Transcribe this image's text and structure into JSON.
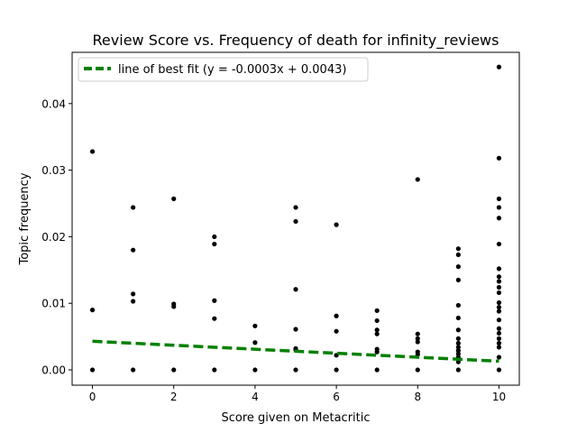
{
  "chart_data": {
    "type": "scatter",
    "title": "Review Score vs. Frequency of death for infinity_reviews",
    "xlabel": "Score given on Metacritic",
    "ylabel": "Topic frequency",
    "xlim": [
      -0.5,
      10.5
    ],
    "ylim": [
      -0.0023,
      0.0477
    ],
    "xticks": [
      0,
      2,
      4,
      6,
      8,
      10
    ],
    "yticks": [
      0.0,
      0.01,
      0.02,
      0.03,
      0.04
    ],
    "ytick_labels": [
      "0.00",
      "0.01",
      "0.02",
      "0.03",
      "0.04"
    ],
    "grid": false,
    "legend_position": "top-left",
    "points_color": "#000000",
    "fit_line": {
      "label": "line of best fit (y = -0.0003x + 0.0043)",
      "slope": -0.0003,
      "intercept": 0.0043,
      "color": "#008000",
      "style": "dashed"
    },
    "points": [
      [
        0,
        0.0328
      ],
      [
        0,
        0.009
      ],
      [
        0,
        0.0
      ],
      [
        1,
        0.0244
      ],
      [
        1,
        0.018
      ],
      [
        1,
        0.0114
      ],
      [
        1,
        0.0103
      ],
      [
        1,
        0.0
      ],
      [
        2,
        0.0257
      ],
      [
        2,
        0.0099
      ],
      [
        2,
        0.0095
      ],
      [
        2,
        0.0
      ],
      [
        3,
        0.02
      ],
      [
        3,
        0.0189
      ],
      [
        3,
        0.0104
      ],
      [
        3,
        0.0077
      ],
      [
        3,
        0.0
      ],
      [
        4,
        0.0066
      ],
      [
        4,
        0.0041
      ],
      [
        4,
        0.0
      ],
      [
        5,
        0.0244
      ],
      [
        5,
        0.0223
      ],
      [
        5,
        0.0121
      ],
      [
        5,
        0.0061
      ],
      [
        5,
        0.0032
      ],
      [
        5,
        0.003
      ],
      [
        5,
        0.0
      ],
      [
        6,
        0.0218
      ],
      [
        6,
        0.0081
      ],
      [
        6,
        0.0058
      ],
      [
        6,
        0.0022
      ],
      [
        6,
        0.0
      ],
      [
        7,
        0.0089
      ],
      [
        7,
        0.0074
      ],
      [
        7,
        0.006
      ],
      [
        7,
        0.0054
      ],
      [
        7,
        0.0031
      ],
      [
        7,
        0.0027
      ],
      [
        7,
        0.0
      ],
      [
        8,
        0.0286
      ],
      [
        8,
        0.0054
      ],
      [
        8,
        0.0047
      ],
      [
        8,
        0.0042
      ],
      [
        8,
        0.0027
      ],
      [
        8,
        0.0023
      ],
      [
        8,
        0.0
      ],
      [
        9,
        0.0182
      ],
      [
        9,
        0.0173
      ],
      [
        9,
        0.0155
      ],
      [
        9,
        0.0135
      ],
      [
        9,
        0.0097
      ],
      [
        9,
        0.0078
      ],
      [
        9,
        0.006
      ],
      [
        9,
        0.0047
      ],
      [
        9,
        0.004
      ],
      [
        9,
        0.0034
      ],
      [
        9,
        0.0029
      ],
      [
        9,
        0.0024
      ],
      [
        9,
        0.0019
      ],
      [
        9,
        0.0012
      ],
      [
        9,
        0.0
      ],
      [
        10,
        0.0455
      ],
      [
        10,
        0.0318
      ],
      [
        10,
        0.0257
      ],
      [
        10,
        0.0244
      ],
      [
        10,
        0.0228
      ],
      [
        10,
        0.0189
      ],
      [
        10,
        0.0152
      ],
      [
        10,
        0.014
      ],
      [
        10,
        0.0133
      ],
      [
        10,
        0.0124
      ],
      [
        10,
        0.0116
      ],
      [
        10,
        0.0101
      ],
      [
        10,
        0.0094
      ],
      [
        10,
        0.0088
      ],
      [
        10,
        0.0075
      ],
      [
        10,
        0.0062
      ],
      [
        10,
        0.0055
      ],
      [
        10,
        0.0047
      ],
      [
        10,
        0.004
      ],
      [
        10,
        0.0034
      ],
      [
        10,
        0.0019
      ],
      [
        10,
        0.0
      ]
    ]
  }
}
